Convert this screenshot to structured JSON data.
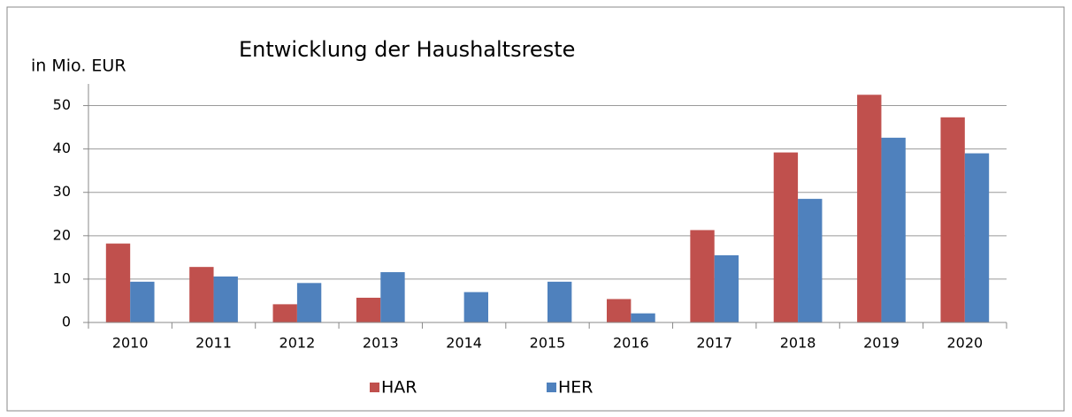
{
  "chart_data": {
    "type": "bar",
    "title": "Entwicklung der Haushaltsreste",
    "y_label": "in Mio. EUR",
    "categories": [
      "2010",
      "2011",
      "2012",
      "2013",
      "2014",
      "2015",
      "2016",
      "2017",
      "2018",
      "2019",
      "2020"
    ],
    "series": [
      {
        "name": "HAR",
        "color": "#c0504d",
        "values": [
          18.2,
          12.8,
          4.2,
          5.7,
          0,
          0,
          5.4,
          21.3,
          39.2,
          52.5,
          47.3
        ]
      },
      {
        "name": "HER",
        "color": "#4f81bd",
        "values": [
          9.4,
          10.6,
          9.1,
          11.6,
          7.0,
          9.4,
          2.1,
          15.5,
          28.5,
          42.6,
          39.0
        ]
      }
    ],
    "ylim": [
      0,
      55
    ],
    "yticks": [
      0,
      10,
      20,
      30,
      40,
      50
    ],
    "grid": true,
    "legend": "bottom"
  }
}
